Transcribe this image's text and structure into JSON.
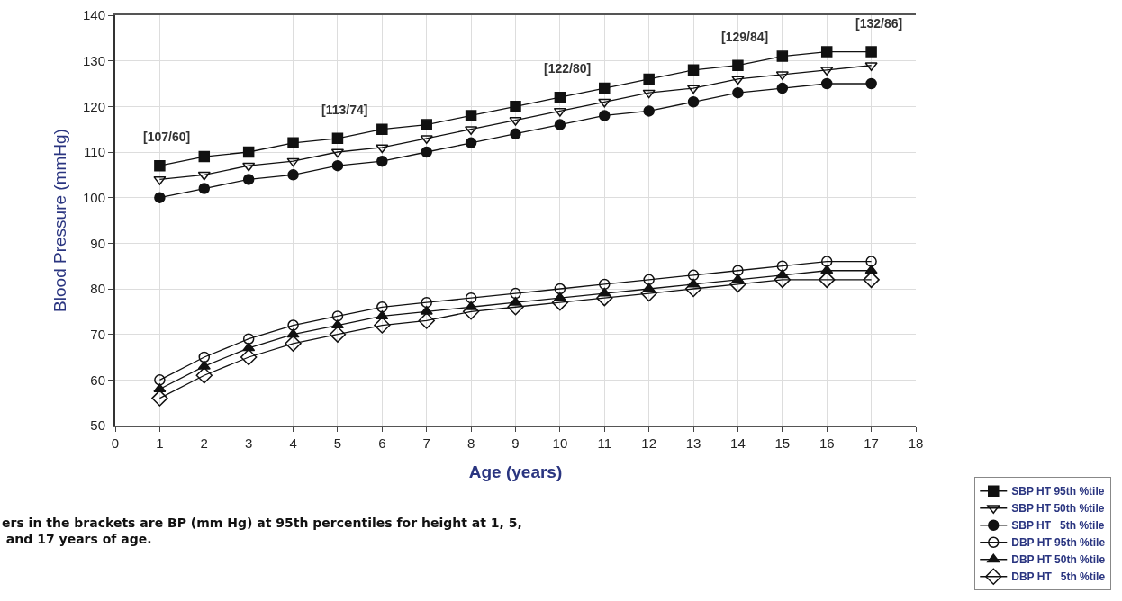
{
  "chart_data": {
    "type": "line",
    "xlabel": "Age (years)",
    "ylabel": "Blood Pressure (mmHg)",
    "x": [
      1,
      2,
      3,
      4,
      5,
      6,
      7,
      8,
      9,
      10,
      11,
      12,
      13,
      14,
      15,
      16,
      17
    ],
    "xlim": [
      0,
      18
    ],
    "xticks": [
      0,
      1,
      2,
      3,
      4,
      5,
      6,
      7,
      8,
      9,
      10,
      11,
      12,
      13,
      14,
      15,
      16,
      17,
      18
    ],
    "ylim": [
      50,
      140
    ],
    "yticks": [
      50,
      60,
      70,
      80,
      90,
      100,
      110,
      120,
      130,
      140
    ],
    "grid": true,
    "legend": "bottom right",
    "line_style": "solid",
    "series": [
      {
        "name": "SBP HT 95th %tile",
        "color": "#111111",
        "marker": "square",
        "values": [
          107,
          109,
          110,
          112,
          113,
          115,
          116,
          118,
          120,
          122,
          124,
          126,
          128,
          129,
          131,
          132,
          132
        ]
      },
      {
        "name": "SBP HT 50th %tile",
        "color": "#111111",
        "marker": "triangle-down-open",
        "values": [
          104,
          105,
          107,
          108,
          110,
          111,
          113,
          115,
          117,
          119,
          121,
          123,
          124,
          126,
          127,
          128,
          129
        ]
      },
      {
        "name": "SBP HT   5th %tile",
        "color": "#111111",
        "marker": "circle",
        "values": [
          100,
          102,
          104,
          105,
          107,
          108,
          110,
          112,
          114,
          116,
          118,
          119,
          121,
          123,
          124,
          125,
          125
        ]
      },
      {
        "name": "DBP HT 95th %tile",
        "color": "#111111",
        "marker": "circle-open",
        "values": [
          60,
          65,
          69,
          72,
          74,
          76,
          77,
          78,
          79,
          80,
          81,
          82,
          83,
          84,
          85,
          86,
          86
        ]
      },
      {
        "name": "DBP HT 50th %tile",
        "color": "#111111",
        "marker": "triangle",
        "values": [
          58,
          63,
          67,
          70,
          72,
          74,
          75,
          76,
          77,
          78,
          79,
          80,
          81,
          82,
          83,
          84,
          84
        ]
      },
      {
        "name": "DBP HT   5th %tile",
        "color": "#111111",
        "marker": "diamond-open",
        "values": [
          56,
          61,
          65,
          68,
          70,
          72,
          73,
          75,
          76,
          77,
          78,
          79,
          80,
          81,
          82,
          82,
          82
        ]
      }
    ],
    "annotations": [
      {
        "text": "[107/60]",
        "x": 1,
        "y": 107
      },
      {
        "text": "[113/74]",
        "x": 5,
        "y": 113
      },
      {
        "text": "[122/80]",
        "x": 10,
        "y": 122
      },
      {
        "text": "[129/84]",
        "x": 14,
        "y": 129
      },
      {
        "text": "[132/86]",
        "x": 17,
        "y": 132
      },
      "ers in the brackets are BP (mm Hg) at 95th percentiles for height at 1, 5,\n and 17 years of age."
    ]
  }
}
